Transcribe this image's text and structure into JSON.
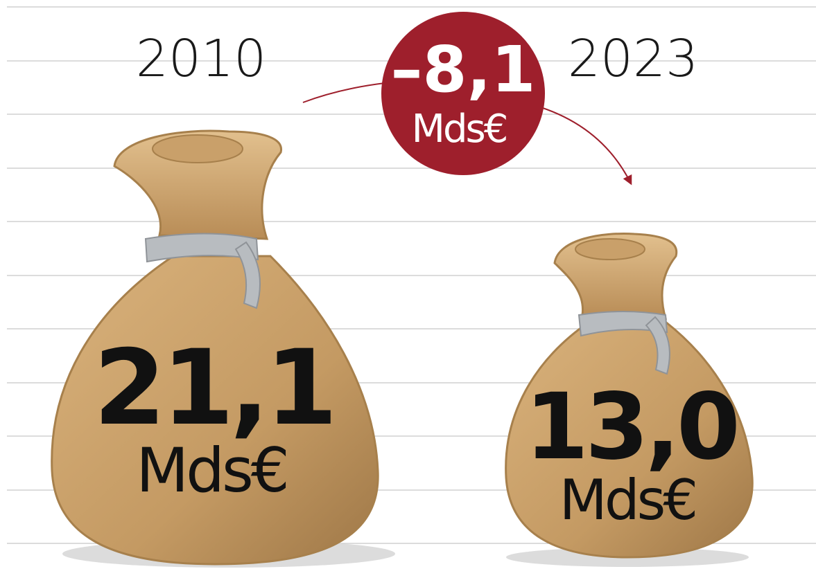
{
  "bags": [
    {
      "year": "2010",
      "value": "21,1",
      "unit": "Mds€"
    },
    {
      "year": "2023",
      "value": "13,0",
      "unit": "Mds€"
    }
  ],
  "change": {
    "value": "–8,1",
    "unit": "Mds€"
  }
}
